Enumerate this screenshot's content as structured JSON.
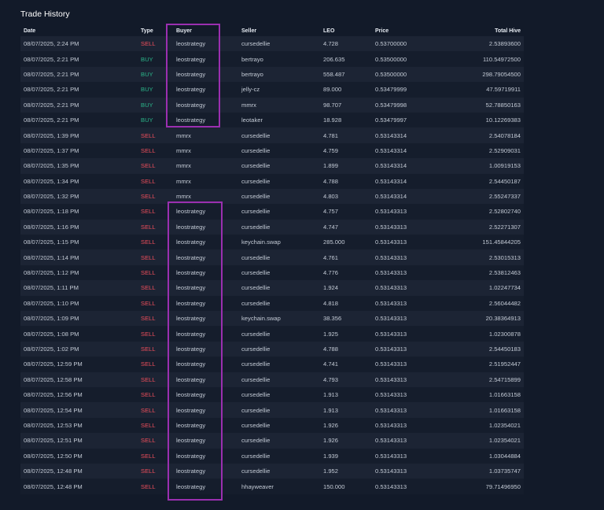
{
  "title": "Trade History",
  "colors": {
    "sell": "#ef4e5b",
    "buy": "#2bb68a",
    "highlight": "#9b2fb0"
  },
  "columns": {
    "date": "Date",
    "type": "Type",
    "buyer": "Buyer",
    "seller": "Seller",
    "leo": "LEO",
    "price": "Price",
    "total": "Total Hive"
  },
  "rows": [
    {
      "date": "08/07/2025, 2:24 PM",
      "type": "SELL",
      "buyer": "leostrategy",
      "seller": "cursedellie",
      "leo": "4.728",
      "price": "0.53700000",
      "total": "2.53893600"
    },
    {
      "date": "08/07/2025, 2:21 PM",
      "type": "BUY",
      "buyer": "leostrategy",
      "seller": "bertrayo",
      "leo": "206.635",
      "price": "0.53500000",
      "total": "110.54972500"
    },
    {
      "date": "08/07/2025, 2:21 PM",
      "type": "BUY",
      "buyer": "leostrategy",
      "seller": "bertrayo",
      "leo": "558.487",
      "price": "0.53500000",
      "total": "298.79054500"
    },
    {
      "date": "08/07/2025, 2:21 PM",
      "type": "BUY",
      "buyer": "leostrategy",
      "seller": "jelly-cz",
      "leo": "89.000",
      "price": "0.53479999",
      "total": "47.59719911"
    },
    {
      "date": "08/07/2025, 2:21 PM",
      "type": "BUY",
      "buyer": "leostrategy",
      "seller": "mmrx",
      "leo": "98.707",
      "price": "0.53479998",
      "total": "52.78850163"
    },
    {
      "date": "08/07/2025, 2:21 PM",
      "type": "BUY",
      "buyer": "leostrategy",
      "seller": "leotaker",
      "leo": "18.928",
      "price": "0.53479997",
      "total": "10.12269383"
    },
    {
      "date": "08/07/2025, 1:39 PM",
      "type": "SELL",
      "buyer": "mmrx",
      "seller": "cursedellie",
      "leo": "4.781",
      "price": "0.53143314",
      "total": "2.54078184"
    },
    {
      "date": "08/07/2025, 1:37 PM",
      "type": "SELL",
      "buyer": "mmrx",
      "seller": "cursedellie",
      "leo": "4.759",
      "price": "0.53143314",
      "total": "2.52909031"
    },
    {
      "date": "08/07/2025, 1:35 PM",
      "type": "SELL",
      "buyer": "mmrx",
      "seller": "cursedellie",
      "leo": "1.899",
      "price": "0.53143314",
      "total": "1.00919153"
    },
    {
      "date": "08/07/2025, 1:34 PM",
      "type": "SELL",
      "buyer": "mmrx",
      "seller": "cursedellie",
      "leo": "4.788",
      "price": "0.53143314",
      "total": "2.54450187"
    },
    {
      "date": "08/07/2025, 1:32 PM",
      "type": "SELL",
      "buyer": "mmrx",
      "seller": "cursedellie",
      "leo": "4.803",
      "price": "0.53143314",
      "total": "2.55247337"
    },
    {
      "date": "08/07/2025, 1:18 PM",
      "type": "SELL",
      "buyer": "leostrategy",
      "seller": "cursedellie",
      "leo": "4.757",
      "price": "0.53143313",
      "total": "2.52802740"
    },
    {
      "date": "08/07/2025, 1:16 PM",
      "type": "SELL",
      "buyer": "leostrategy",
      "seller": "cursedellie",
      "leo": "4.747",
      "price": "0.53143313",
      "total": "2.52271307"
    },
    {
      "date": "08/07/2025, 1:15 PM",
      "type": "SELL",
      "buyer": "leostrategy",
      "seller": "keychain.swap",
      "leo": "285.000",
      "price": "0.53143313",
      "total": "151.45844205"
    },
    {
      "date": "08/07/2025, 1:14 PM",
      "type": "SELL",
      "buyer": "leostrategy",
      "seller": "cursedellie",
      "leo": "4.761",
      "price": "0.53143313",
      "total": "2.53015313"
    },
    {
      "date": "08/07/2025, 1:12 PM",
      "type": "SELL",
      "buyer": "leostrategy",
      "seller": "cursedellie",
      "leo": "4.776",
      "price": "0.53143313",
      "total": "2.53812463"
    },
    {
      "date": "08/07/2025, 1:11 PM",
      "type": "SELL",
      "buyer": "leostrategy",
      "seller": "cursedellie",
      "leo": "1.924",
      "price": "0.53143313",
      "total": "1.02247734"
    },
    {
      "date": "08/07/2025, 1:10 PM",
      "type": "SELL",
      "buyer": "leostrategy",
      "seller": "cursedellie",
      "leo": "4.818",
      "price": "0.53143313",
      "total": "2.56044482"
    },
    {
      "date": "08/07/2025, 1:09 PM",
      "type": "SELL",
      "buyer": "leostrategy",
      "seller": "keychain.swap",
      "leo": "38.356",
      "price": "0.53143313",
      "total": "20.38364913"
    },
    {
      "date": "08/07/2025, 1:08 PM",
      "type": "SELL",
      "buyer": "leostrategy",
      "seller": "cursedellie",
      "leo": "1.925",
      "price": "0.53143313",
      "total": "1.02300878"
    },
    {
      "date": "08/07/2025, 1:02 PM",
      "type": "SELL",
      "buyer": "leostrategy",
      "seller": "cursedellie",
      "leo": "4.788",
      "price": "0.53143313",
      "total": "2.54450183"
    },
    {
      "date": "08/07/2025, 12:59 PM",
      "type": "SELL",
      "buyer": "leostrategy",
      "seller": "cursedellie",
      "leo": "4.741",
      "price": "0.53143313",
      "total": "2.51952447"
    },
    {
      "date": "08/07/2025, 12:58 PM",
      "type": "SELL",
      "buyer": "leostrategy",
      "seller": "cursedellie",
      "leo": "4.793",
      "price": "0.53143313",
      "total": "2.54715899"
    },
    {
      "date": "08/07/2025, 12:56 PM",
      "type": "SELL",
      "buyer": "leostrategy",
      "seller": "cursedellie",
      "leo": "1.913",
      "price": "0.53143313",
      "total": "1.01663158"
    },
    {
      "date": "08/07/2025, 12:54 PM",
      "type": "SELL",
      "buyer": "leostrategy",
      "seller": "cursedellie",
      "leo": "1.913",
      "price": "0.53143313",
      "total": "1.01663158"
    },
    {
      "date": "08/07/2025, 12:53 PM",
      "type": "SELL",
      "buyer": "leostrategy",
      "seller": "cursedellie",
      "leo": "1.926",
      "price": "0.53143313",
      "total": "1.02354021"
    },
    {
      "date": "08/07/2025, 12:51 PM",
      "type": "SELL",
      "buyer": "leostrategy",
      "seller": "cursedellie",
      "leo": "1.926",
      "price": "0.53143313",
      "total": "1.02354021"
    },
    {
      "date": "08/07/2025, 12:50 PM",
      "type": "SELL",
      "buyer": "leostrategy",
      "seller": "cursedellie",
      "leo": "1.939",
      "price": "0.53143313",
      "total": "1.03044884"
    },
    {
      "date": "08/07/2025, 12:48 PM",
      "type": "SELL",
      "buyer": "leostrategy",
      "seller": "cursedellie",
      "leo": "1.952",
      "price": "0.53143313",
      "total": "1.03735747"
    },
    {
      "date": "08/07/2025, 12:48 PM",
      "type": "SELL",
      "buyer": "leostrategy",
      "seller": "hhayweaver",
      "leo": "150.000",
      "price": "0.53143313",
      "total": "79.71496950"
    }
  ]
}
